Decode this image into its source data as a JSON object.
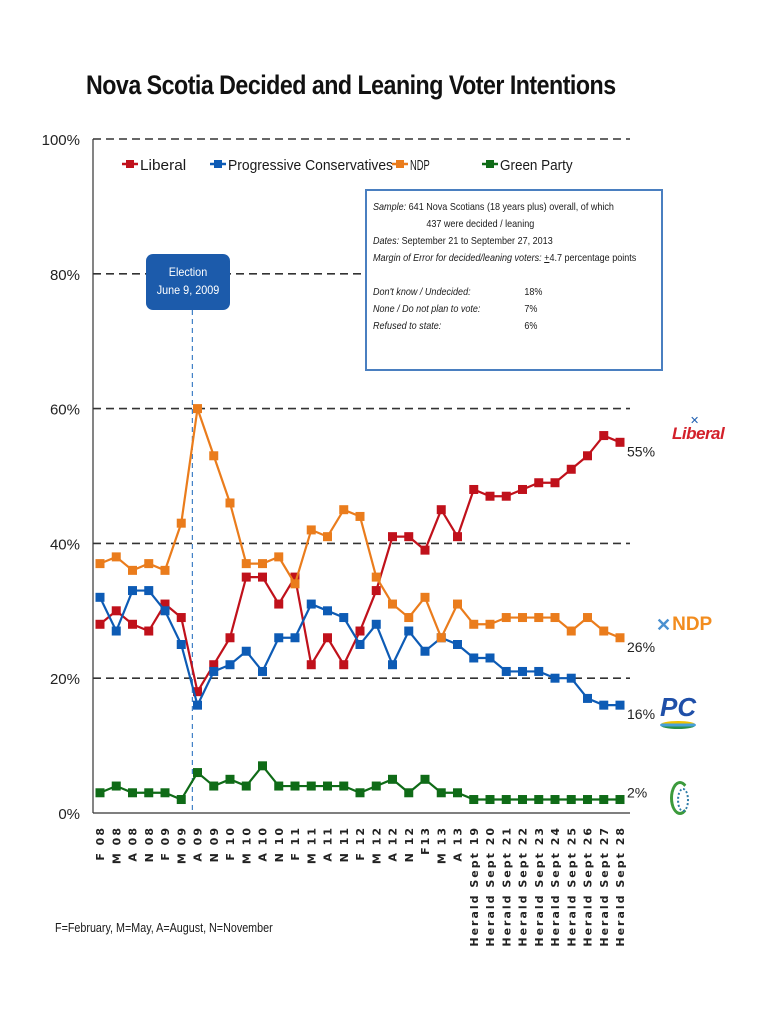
{
  "chart_data": {
    "type": "line",
    "title": "Nova Scotia Decided and Leaning Voter Intentions",
    "xlabel": "",
    "ylabel": "",
    "ylim": [
      0,
      100
    ],
    "yticks": [
      "0%",
      "20%",
      "40%",
      "60%",
      "80%",
      "100%"
    ],
    "ytick_values": [
      0,
      20,
      40,
      60,
      80,
      100
    ],
    "grid": "dashed horizontal at 20% intervals",
    "legend_position": "top",
    "categories": [
      "F 08",
      "M 08",
      "A 08",
      "N 08",
      "F 09",
      "M 09",
      "A 09",
      "N 09",
      "F 10",
      "M 10",
      "A 10",
      "N 10",
      "F 11",
      "M 11",
      "A 11",
      "N 11",
      "F 12",
      "M 12",
      "A 12",
      "N 12",
      "F13",
      "M 13",
      "A 13",
      "Herald Sept 19",
      "Herald Sept 20",
      "Herald Sept 21",
      "Herald Sept 22",
      "Herald Sept 23",
      "Herald Sept 24",
      "Herald Sept 25",
      "Herald Sept 26",
      "Herald Sept 27",
      "Herald Sept 28"
    ],
    "series": [
      {
        "name": "Liberal",
        "color": "#c0111b",
        "values": [
          28,
          30,
          28,
          27,
          31,
          29,
          18,
          22,
          26,
          35,
          35,
          31,
          35,
          22,
          26,
          22,
          27,
          33,
          41,
          41,
          39,
          45,
          41,
          48,
          47,
          47,
          48,
          49,
          49,
          51,
          53,
          56,
          55
        ],
        "end_label": "55%"
      },
      {
        "name": "Progressive Conservatives",
        "color": "#0d5bb5",
        "values": [
          32,
          27,
          33,
          33,
          30,
          25,
          16,
          21,
          22,
          24,
          21,
          26,
          26,
          31,
          30,
          29,
          25,
          28,
          22,
          27,
          24,
          26,
          25,
          23,
          23,
          21,
          21,
          21,
          20,
          20,
          17,
          16,
          16
        ],
        "end_label": "16%"
      },
      {
        "name": "NDP",
        "color": "#ea7c1c",
        "values": [
          37,
          38,
          36,
          37,
          36,
          43,
          60,
          53,
          46,
          37,
          37,
          38,
          34,
          42,
          41,
          45,
          44,
          35,
          31,
          29,
          32,
          26,
          31,
          28,
          28,
          29,
          29,
          29,
          29,
          27,
          29,
          27,
          26
        ],
        "end_label": "26%"
      },
      {
        "name": "Green Party",
        "color": "#0f6b17",
        "values": [
          3,
          4,
          3,
          3,
          3,
          2,
          6,
          4,
          5,
          4,
          7,
          4,
          4,
          4,
          4,
          4,
          3,
          4,
          5,
          3,
          5,
          3,
          3,
          2,
          2,
          2,
          2,
          2,
          2,
          2,
          2,
          2,
          2
        ],
        "end_label": "2%"
      }
    ],
    "annotations": {
      "election": {
        "line1": "Election",
        "line2": "June 9, 2009",
        "between": [
          "M 09",
          "A 09"
        ],
        "color": "#1c5bab"
      }
    }
  },
  "info_box": {
    "sample_label": "Sample:",
    "sample_text": "641 Nova Scotians (18 years plus) overall, of which",
    "sample_text2": "437 were decided / leaning",
    "dates_label": "Dates:",
    "dates_text": "September 21 to September 27, 2013",
    "moe_label": "Margin of Error for decided/leaning voters:",
    "moe_pm": "+",
    "moe_text": "4.7 percentage points",
    "stats": [
      {
        "label": "Don't know / Undecided:",
        "value": "18%"
      },
      {
        "label": "None / Do not plan to vote:",
        "value": "7%"
      },
      {
        "label": "Refused to state:",
        "value": "6%"
      }
    ]
  },
  "logos": {
    "liberal": "Liberal",
    "ndp": "NDP",
    "pc": "PC"
  },
  "footnote": "F=February, M=May, A=August, N=November"
}
